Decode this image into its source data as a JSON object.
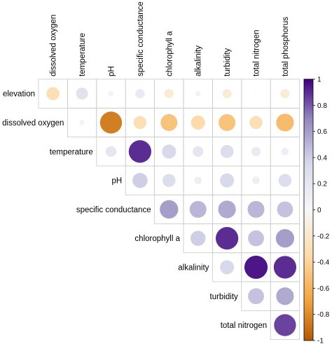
{
  "chart_data": {
    "type": "heatmap",
    "subtype": "correlogram-upper-triangle-circles",
    "variables_x": [
      "dissolved oxygen",
      "temperature",
      "pH",
      "specific conductance",
      "chlorophyll a",
      "alkalinity",
      "turbidity",
      "total nitrogen",
      "total phosphorus"
    ],
    "variables_y": [
      "elevation",
      "dissolved oxygen",
      "temperature",
      "pH",
      "specific conductance",
      "chlorophyll a",
      "alkalinity",
      "turbidity",
      "total nitrogen"
    ],
    "matrix": [
      [
        -0.3,
        0.25,
        0.05,
        0.15,
        -0.15,
        0.05,
        -0.15,
        0.0,
        -0.15
      ],
      [
        null,
        -0.05,
        -0.85,
        -0.3,
        -0.5,
        -0.35,
        -0.5,
        -0.3,
        -0.55
      ],
      [
        null,
        null,
        0.2,
        0.9,
        0.35,
        0.2,
        0.3,
        0.15,
        0.1
      ],
      [
        null,
        null,
        null,
        0.4,
        0.3,
        0.1,
        0.35,
        0.1,
        0.3
      ],
      [
        null,
        null,
        null,
        null,
        0.6,
        0.5,
        0.55,
        0.5,
        0.45
      ],
      [
        null,
        null,
        null,
        null,
        null,
        0.4,
        0.9,
        0.45,
        0.6
      ],
      [
        null,
        null,
        null,
        null,
        null,
        null,
        0.35,
        0.95,
        0.9
      ],
      [
        null,
        null,
        null,
        null,
        null,
        null,
        null,
        0.45,
        0.55
      ],
      [
        null,
        null,
        null,
        null,
        null,
        null,
        null,
        null,
        0.85
      ]
    ],
    "colorbar": {
      "range": [
        -1,
        1
      ],
      "ticks": [
        "1",
        "0.8",
        "0.6",
        "0.4",
        "0.2",
        "0",
        "-0.2",
        "-0.4",
        "-0.6",
        "-0.8",
        "-1"
      ],
      "negative_color": "#b35806",
      "neutral_color": "#f7f7f7",
      "positive_color": "#3f007d"
    },
    "grid": true,
    "legend_position": "right"
  }
}
